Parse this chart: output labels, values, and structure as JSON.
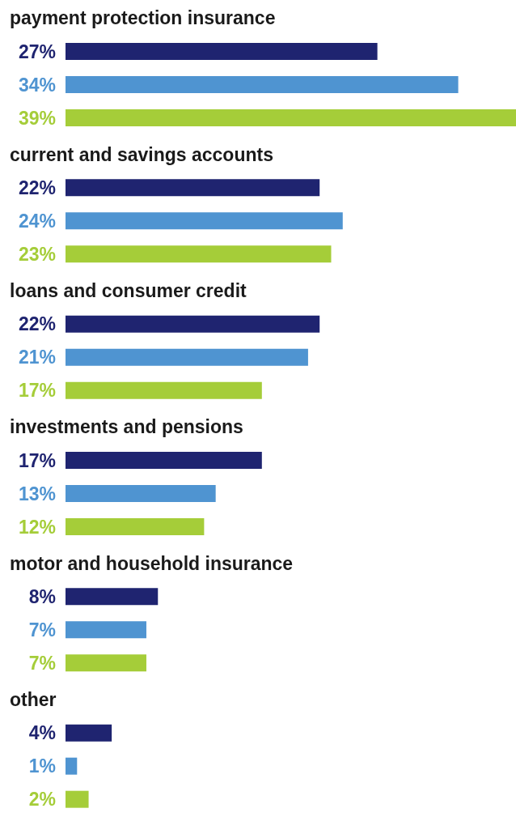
{
  "chart_data": {
    "type": "bar",
    "orientation": "horizontal",
    "tick_labels": "y",
    "categories": [
      "payment protection insurance",
      "current and savings accounts",
      "loans and consumer credit",
      "investments and pensions",
      "motor and household insurance",
      "other"
    ],
    "series": [
      {
        "color": "#1f2470",
        "values": [
          27,
          22,
          22,
          17,
          8,
          4
        ],
        "value_labels": [
          "27%",
          "22%",
          "22%",
          "17%",
          "8%",
          "4%"
        ]
      },
      {
        "color": "#4f94d1",
        "values": [
          34,
          24,
          21,
          13,
          7,
          1
        ],
        "value_labels": [
          "34%",
          "24%",
          "21%",
          "13%",
          "7%",
          "1%"
        ]
      },
      {
        "color": "#a5cd39",
        "values": [
          39,
          23,
          17,
          12,
          7,
          2
        ],
        "value_labels": [
          "39%",
          "23%",
          "17%",
          "12%",
          "7%",
          "2%"
        ]
      }
    ]
  }
}
